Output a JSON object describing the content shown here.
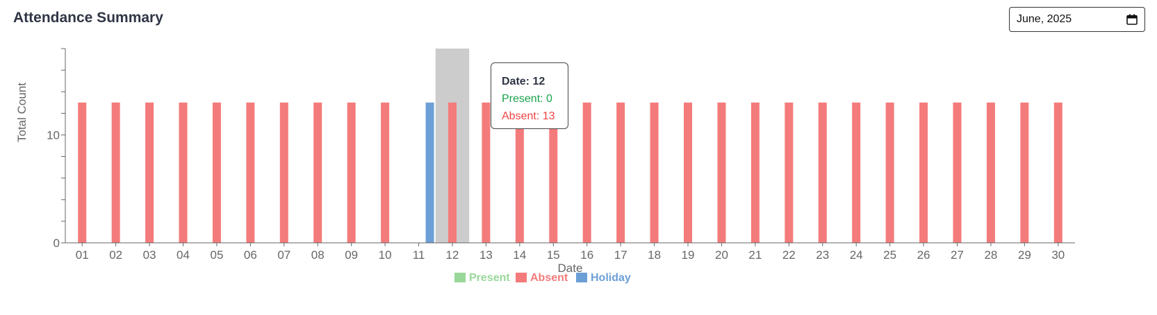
{
  "header": {
    "title": "Attendance Summary"
  },
  "month_picker": {
    "value": "June, 2025",
    "icon": "calendar-icon"
  },
  "tooltip": {
    "date_label": "Date: 12",
    "present_label": "Present: 0",
    "absent_label": "Absent: 13"
  },
  "colors": {
    "present": "#9ad89a",
    "absent": "#f47b7b",
    "holiday": "#6b9fd6",
    "cursor": "#cccccc"
  },
  "chart_data": {
    "type": "bar",
    "xlabel": "Date",
    "ylabel": "Total Count",
    "ylim": [
      0,
      18
    ],
    "yticks": [
      0,
      10
    ],
    "grid": false,
    "legend_position": "bottom",
    "highlighted_category": "12",
    "categories": [
      "01",
      "02",
      "03",
      "04",
      "05",
      "06",
      "07",
      "08",
      "09",
      "10",
      "11",
      "12",
      "13",
      "14",
      "15",
      "16",
      "17",
      "18",
      "19",
      "20",
      "21",
      "22",
      "23",
      "24",
      "25",
      "26",
      "27",
      "28",
      "29",
      "30"
    ],
    "series": [
      {
        "name": "Present",
        "values": [
          0,
          0,
          0,
          0,
          0,
          0,
          0,
          0,
          0,
          0,
          0,
          0,
          0,
          0,
          0,
          0,
          0,
          0,
          0,
          0,
          0,
          0,
          0,
          0,
          0,
          0,
          0,
          0,
          0,
          0
        ]
      },
      {
        "name": "Absent",
        "values": [
          13,
          13,
          13,
          13,
          13,
          13,
          13,
          13,
          13,
          13,
          0,
          13,
          13,
          13,
          13,
          13,
          13,
          13,
          13,
          13,
          13,
          13,
          13,
          13,
          13,
          13,
          13,
          13,
          13,
          13
        ]
      },
      {
        "name": "Holiday",
        "values": [
          0,
          0,
          0,
          0,
          0,
          0,
          0,
          0,
          0,
          0,
          13,
          0,
          0,
          0,
          0,
          0,
          0,
          0,
          0,
          0,
          0,
          0,
          0,
          0,
          0,
          0,
          0,
          0,
          0,
          0
        ]
      }
    ]
  }
}
